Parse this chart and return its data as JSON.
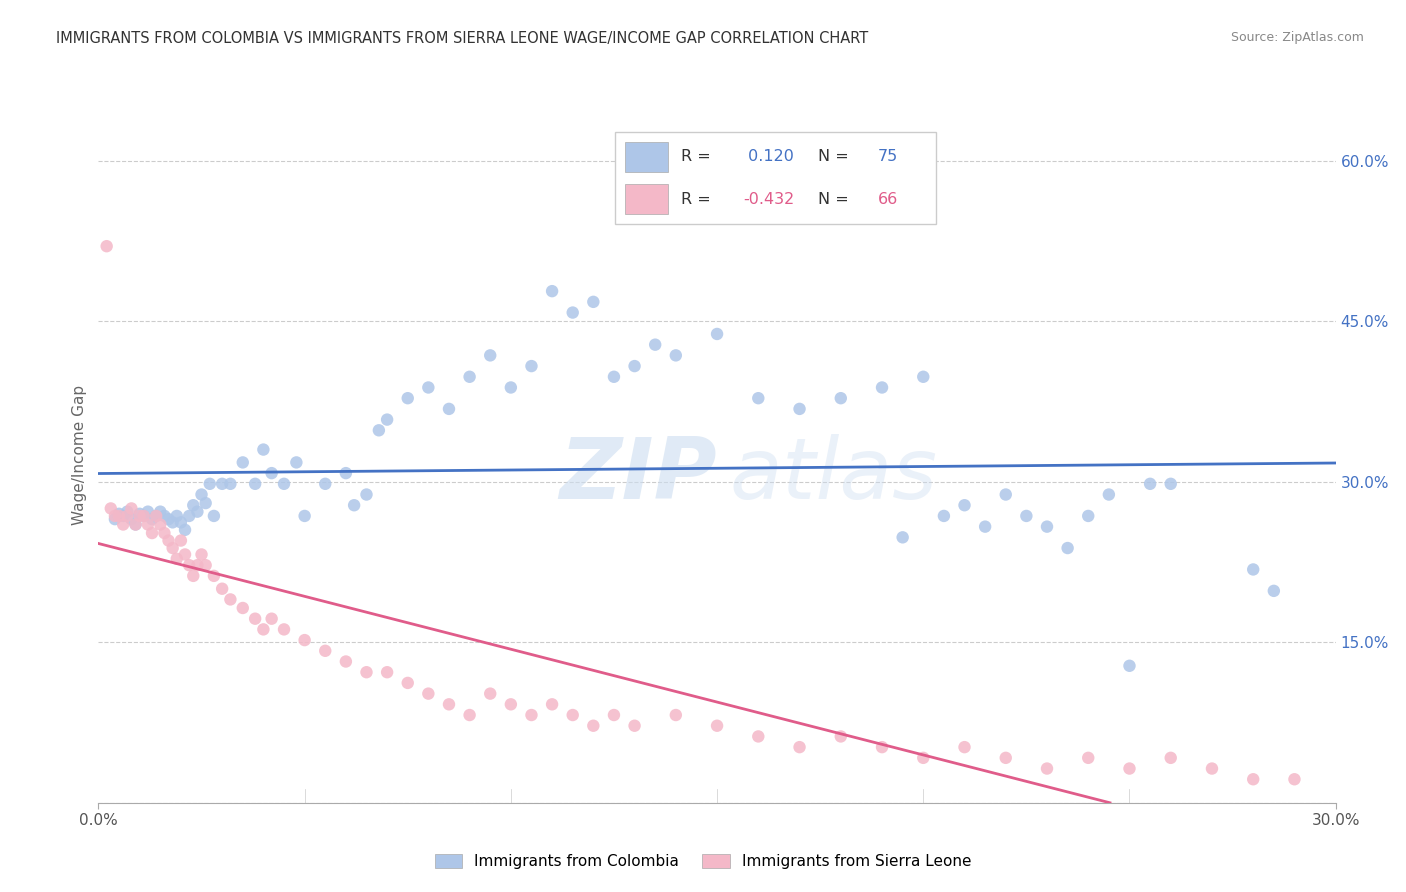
{
  "title": "IMMIGRANTS FROM COLOMBIA VS IMMIGRANTS FROM SIERRA LEONE WAGE/INCOME GAP CORRELATION CHART",
  "source": "Source: ZipAtlas.com",
  "ylabel": "Wage/Income Gap",
  "xlim": [
    0.0,
    0.3
  ],
  "ylim": [
    0.0,
    0.65
  ],
  "xticks": [
    0.0,
    0.3
  ],
  "xticklabels": [
    "0.0%",
    "30.0%"
  ],
  "yticks": [
    0.0,
    0.15,
    0.3,
    0.45,
    0.6
  ],
  "yticklabels": [
    "",
    "15.0%",
    "30.0%",
    "45.0%",
    "60.0%"
  ],
  "colombia_color": "#aec6e8",
  "sierra_leone_color": "#f4b8c8",
  "colombia_line_color": "#4472C4",
  "sierra_leone_line_color": "#E05C8A",
  "colombia_R": 0.12,
  "colombia_N": 75,
  "sierra_leone_R": -0.432,
  "sierra_leone_N": 66,
  "colombia_x": [
    0.004,
    0.005,
    0.006,
    0.007,
    0.008,
    0.009,
    0.01,
    0.011,
    0.012,
    0.013,
    0.014,
    0.015,
    0.016,
    0.017,
    0.018,
    0.019,
    0.02,
    0.021,
    0.022,
    0.023,
    0.024,
    0.025,
    0.026,
    0.027,
    0.028,
    0.03,
    0.032,
    0.035,
    0.038,
    0.04,
    0.042,
    0.045,
    0.048,
    0.05,
    0.055,
    0.06,
    0.062,
    0.065,
    0.068,
    0.07,
    0.075,
    0.08,
    0.085,
    0.09,
    0.095,
    0.1,
    0.105,
    0.11,
    0.115,
    0.12,
    0.125,
    0.13,
    0.135,
    0.14,
    0.15,
    0.16,
    0.17,
    0.18,
    0.19,
    0.195,
    0.2,
    0.205,
    0.21,
    0.215,
    0.22,
    0.225,
    0.23,
    0.235,
    0.24,
    0.245,
    0.25,
    0.255,
    0.26,
    0.28,
    0.285
  ],
  "colombia_y": [
    0.265,
    0.27,
    0.268,
    0.272,
    0.265,
    0.26,
    0.27,
    0.268,
    0.272,
    0.265,
    0.268,
    0.272,
    0.268,
    0.265,
    0.262,
    0.268,
    0.262,
    0.255,
    0.268,
    0.278,
    0.272,
    0.288,
    0.28,
    0.298,
    0.268,
    0.298,
    0.298,
    0.318,
    0.298,
    0.33,
    0.308,
    0.298,
    0.318,
    0.268,
    0.298,
    0.308,
    0.278,
    0.288,
    0.348,
    0.358,
    0.378,
    0.388,
    0.368,
    0.398,
    0.418,
    0.388,
    0.408,
    0.478,
    0.458,
    0.468,
    0.398,
    0.408,
    0.428,
    0.418,
    0.438,
    0.378,
    0.368,
    0.378,
    0.388,
    0.248,
    0.398,
    0.268,
    0.278,
    0.258,
    0.288,
    0.268,
    0.258,
    0.238,
    0.268,
    0.288,
    0.128,
    0.298,
    0.298,
    0.218,
    0.198
  ],
  "sierra_leone_x": [
    0.002,
    0.003,
    0.004,
    0.005,
    0.006,
    0.007,
    0.008,
    0.009,
    0.01,
    0.011,
    0.012,
    0.013,
    0.014,
    0.015,
    0.016,
    0.017,
    0.018,
    0.019,
    0.02,
    0.021,
    0.022,
    0.023,
    0.024,
    0.025,
    0.026,
    0.028,
    0.03,
    0.032,
    0.035,
    0.038,
    0.04,
    0.042,
    0.045,
    0.05,
    0.055,
    0.06,
    0.065,
    0.07,
    0.075,
    0.08,
    0.085,
    0.09,
    0.095,
    0.1,
    0.105,
    0.11,
    0.115,
    0.12,
    0.125,
    0.13,
    0.14,
    0.15,
    0.16,
    0.17,
    0.18,
    0.19,
    0.2,
    0.21,
    0.22,
    0.23,
    0.24,
    0.25,
    0.26,
    0.27,
    0.28,
    0.29
  ],
  "sierra_leone_y": [
    0.52,
    0.275,
    0.268,
    0.268,
    0.26,
    0.268,
    0.275,
    0.26,
    0.268,
    0.268,
    0.26,
    0.252,
    0.268,
    0.26,
    0.252,
    0.245,
    0.238,
    0.228,
    0.245,
    0.232,
    0.222,
    0.212,
    0.222,
    0.232,
    0.222,
    0.212,
    0.2,
    0.19,
    0.182,
    0.172,
    0.162,
    0.172,
    0.162,
    0.152,
    0.142,
    0.132,
    0.122,
    0.122,
    0.112,
    0.102,
    0.092,
    0.082,
    0.102,
    0.092,
    0.082,
    0.092,
    0.082,
    0.072,
    0.082,
    0.072,
    0.082,
    0.072,
    0.062,
    0.052,
    0.062,
    0.052,
    0.042,
    0.052,
    0.042,
    0.032,
    0.042,
    0.032,
    0.042,
    0.032,
    0.022,
    0.022
  ]
}
